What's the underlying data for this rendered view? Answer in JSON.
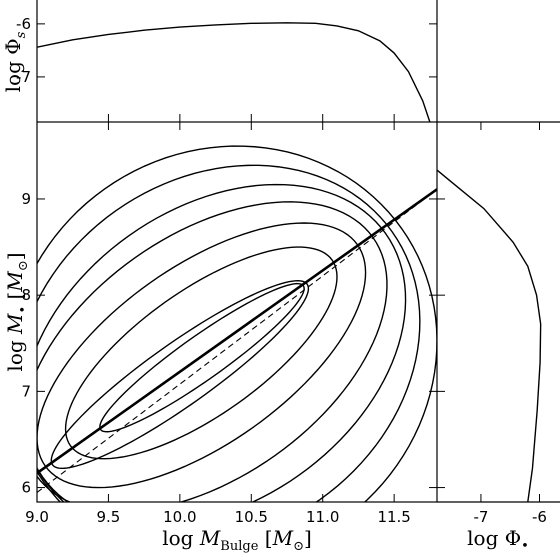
{
  "chart_data": [
    {
      "panel": "main",
      "type": "contour",
      "xlabel": "log M_Bulge [M_⊙]",
      "ylabel": "log M_• [M_⊙]",
      "xlabel_parts": {
        "prefix": "log ",
        "var": "M",
        "sub": "Bulge",
        "suffix": " [M",
        "unit_sub": "⊙",
        "close": "]"
      },
      "ylabel_parts": {
        "prefix": "log ",
        "var": "M",
        "sub": "•",
        "suffix": " [M",
        "unit_sub": "⊙",
        "close": "]"
      },
      "xlim": [
        9.0,
        11.8
      ],
      "ylim": [
        5.85,
        9.8
      ],
      "x_ticks": [
        9.0,
        9.5,
        10.0,
        10.5,
        11.0,
        11.5
      ],
      "x_tick_labels": [
        "9.0",
        "9.5",
        "10.0",
        "10.5",
        "11.0",
        "11.5"
      ],
      "y_ticks": [
        6,
        7,
        8,
        9
      ],
      "y_tick_labels": [
        "6",
        "7",
        "8",
        "9"
      ],
      "contours": [
        {
          "x_min": 9.1,
          "x_max": 10.9,
          "y_min": 6.2,
          "y_max": 8.15
        },
        {
          "x_min": 9.44,
          "x_max": 10.87,
          "y_min": 6.58,
          "y_max": 8.12
        },
        {
          "x_min": 9.2,
          "x_max": 11.1,
          "y_min": 6.3,
          "y_max": 8.5
        },
        {
          "x_min": 9.0,
          "x_max": 11.3,
          "y_min": 6.0,
          "y_max": 8.75
        },
        {
          "x_min": 8.9,
          "x_max": 11.45,
          "y_min": 5.75,
          "y_max": 8.97
        },
        {
          "x_min": 8.9,
          "x_max": 11.58,
          "y_min": 5.6,
          "y_max": 9.15
        },
        {
          "x_min": 8.85,
          "x_max": 11.68,
          "y_min": 5.4,
          "y_max": 9.35
        },
        {
          "x_min": 8.8,
          "x_max": 11.8,
          "y_min": 5.2,
          "y_max": 9.55
        }
      ],
      "fit_line_solid": {
        "x": [
          9.0,
          11.8
        ],
        "y": [
          6.15,
          9.1
        ]
      },
      "fit_line_dashed": {
        "x": [
          9.0,
          11.8
        ],
        "y": [
          5.95,
          9.1
        ]
      }
    },
    {
      "panel": "top",
      "type": "line",
      "ylabel": "log Φ_s",
      "ylabel_parts": {
        "prefix": "log ",
        "var": "Φ",
        "sub": "s"
      },
      "xlim": [
        9.0,
        11.8
      ],
      "ylim": [
        -7.85,
        -5.55
      ],
      "y_ticks": [
        -7,
        -6
      ],
      "y_tick_labels": [
        "-7",
        "-6"
      ],
      "x": [
        9.0,
        9.25,
        9.5,
        9.75,
        10.0,
        10.25,
        10.5,
        10.75,
        10.95,
        11.1,
        11.25,
        11.4,
        11.5,
        11.6,
        11.7,
        11.75
      ],
      "y": [
        -6.44,
        -6.3,
        -6.2,
        -6.12,
        -6.06,
        -6.02,
        -5.99,
        -5.98,
        -5.99,
        -6.04,
        -6.13,
        -6.32,
        -6.55,
        -6.9,
        -7.45,
        -7.85
      ]
    },
    {
      "panel": "right",
      "type": "line",
      "xlabel": "log Φ_•",
      "xlabel_parts": {
        "prefix": "log ",
        "var": "Φ",
        "sub": "•"
      },
      "xlim": [
        -7.75,
        -5.65
      ],
      "ylim": [
        5.85,
        9.8
      ],
      "x_ticks": [
        -7,
        -6
      ],
      "x_tick_labels": [
        "-7",
        "-6"
      ],
      "x": [
        -7.75,
        -7.45,
        -6.95,
        -6.45,
        -6.2,
        -6.05,
        -5.98,
        -5.99,
        -6.04,
        -6.12,
        -6.2
      ],
      "y": [
        9.3,
        9.15,
        8.9,
        8.55,
        8.3,
        8.0,
        7.7,
        7.3,
        6.8,
        6.2,
        5.85
      ]
    }
  ]
}
